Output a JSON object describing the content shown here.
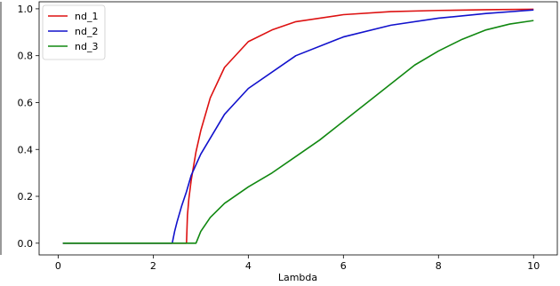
{
  "chart_data": {
    "type": "line",
    "title": "",
    "xlabel": "Lambda",
    "ylabel": "",
    "xlim": [
      -0.4,
      10.5
    ],
    "ylim": [
      -0.05,
      1.03
    ],
    "x_ticks": [
      0,
      2,
      4,
      6,
      8,
      10
    ],
    "y_ticks": [
      0.0,
      0.2,
      0.4,
      0.6,
      0.8,
      1.0
    ],
    "x_tick_labels": [
      "0",
      "2",
      "4",
      "6",
      "8",
      "10"
    ],
    "y_tick_labels": [
      "0.0",
      "0.2",
      "0.4",
      "0.6",
      "0.8",
      "1.0"
    ],
    "grid": false,
    "legend_position": "top-left",
    "series": [
      {
        "name": "nd_1",
        "color": "#dd1111",
        "x": [
          0.1,
          1.0,
          2.0,
          2.68,
          2.7,
          2.72,
          2.75,
          2.8,
          2.9,
          3.0,
          3.2,
          3.5,
          4.0,
          4.5,
          5.0,
          6.0,
          7.0,
          8.0,
          9.0,
          10.0
        ],
        "y": [
          0.0,
          0.0,
          0.0,
          0.0,
          0.0,
          0.12,
          0.19,
          0.27,
          0.39,
          0.48,
          0.62,
          0.75,
          0.86,
          0.91,
          0.945,
          0.975,
          0.988,
          0.993,
          0.996,
          0.998
        ]
      },
      {
        "name": "nd_2",
        "color": "#1111cc",
        "x": [
          0.1,
          1.0,
          2.0,
          2.4,
          2.45,
          2.5,
          2.6,
          2.7,
          2.8,
          3.0,
          3.5,
          4.0,
          5.0,
          6.0,
          7.0,
          8.0,
          9.0,
          10.0
        ],
        "y": [
          0.0,
          0.0,
          0.0,
          0.0,
          0.05,
          0.09,
          0.16,
          0.22,
          0.29,
          0.38,
          0.55,
          0.66,
          0.8,
          0.88,
          0.93,
          0.96,
          0.98,
          0.995
        ]
      },
      {
        "name": "nd_3",
        "color": "#118811",
        "x": [
          0.1,
          1.0,
          2.0,
          2.88,
          2.9,
          3.0,
          3.2,
          3.5,
          4.0,
          4.5,
          5.0,
          5.5,
          6.0,
          6.5,
          7.0,
          7.5,
          8.0,
          8.5,
          9.0,
          9.5,
          10.0
        ],
        "y": [
          0.0,
          0.0,
          0.0,
          0.0,
          0.0,
          0.05,
          0.11,
          0.17,
          0.24,
          0.3,
          0.37,
          0.44,
          0.52,
          0.6,
          0.68,
          0.76,
          0.82,
          0.87,
          0.91,
          0.935,
          0.95
        ]
      }
    ]
  }
}
